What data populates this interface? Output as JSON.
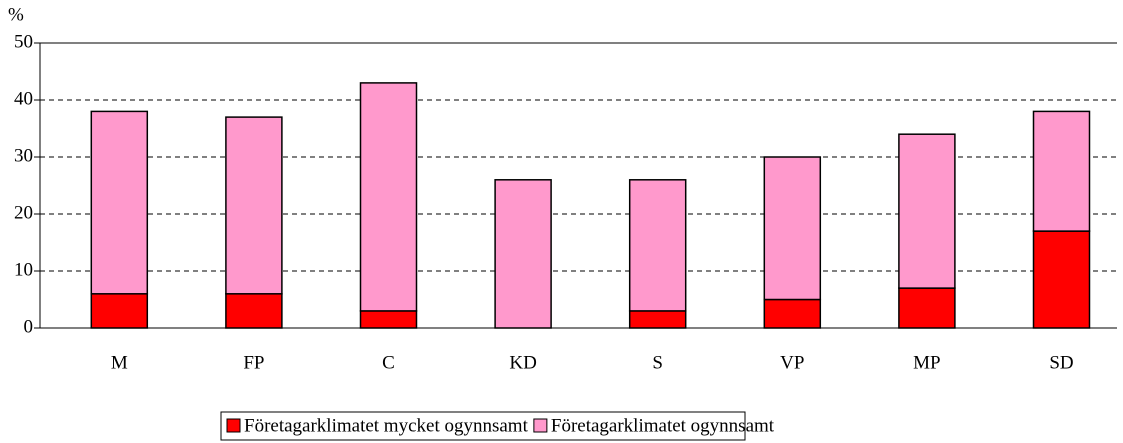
{
  "chart_data": {
    "type": "stacked_bar",
    "y_label": "%",
    "categories": [
      "M",
      "FP",
      "C",
      "KD",
      "S",
      "VP",
      "MP",
      "SD"
    ],
    "series": [
      {
        "name": "Företagarklimatet mycket ogynnsamt",
        "color": "#ff0000",
        "values": [
          6,
          6,
          3,
          0,
          3,
          5,
          7,
          17
        ]
      },
      {
        "name": "Företagarklimatet ogynnsamt",
        "color": "#ff99cc",
        "values": [
          32,
          31,
          40,
          26,
          23,
          25,
          27,
          21
        ]
      }
    ],
    "ylim": [
      0,
      50
    ],
    "yticks": [
      0,
      10,
      20,
      30,
      40,
      50
    ],
    "grid": true,
    "legend": "bottom"
  }
}
